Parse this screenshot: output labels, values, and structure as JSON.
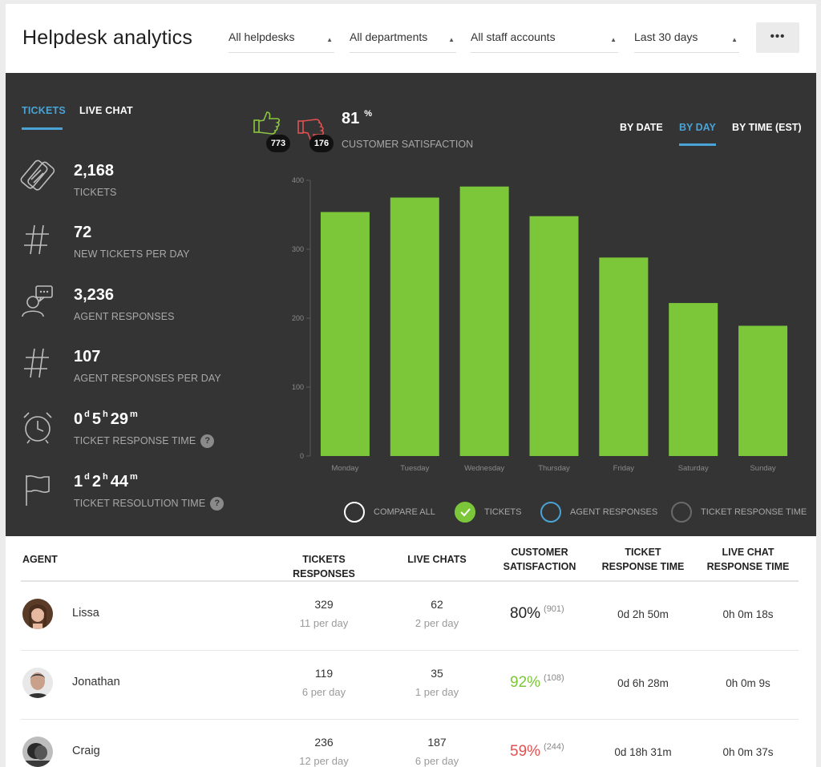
{
  "header": {
    "title": "Helpdesk analytics",
    "filters": [
      "All helpdesks",
      "All departments",
      "All staff accounts",
      "Last 30 days"
    ],
    "more_label": "•••"
  },
  "tabs": [
    "TICKETS",
    "LIVE CHAT"
  ],
  "active_tab": "TICKETS",
  "metrics": [
    {
      "icon": "ticket-icon",
      "value": "2,168",
      "label": "TICKETS"
    },
    {
      "icon": "hash-icon",
      "value": "72",
      "label": "NEW TICKETS PER DAY"
    },
    {
      "icon": "agent-icon",
      "value": "3,236",
      "label": "AGENT RESPONSES"
    },
    {
      "icon": "hash-icon",
      "value": "107",
      "label": "AGENT RESPONSES PER DAY"
    },
    {
      "icon": "alarm-clock-icon",
      "value_parts": [
        "0",
        "d",
        "5",
        "h",
        "29",
        "m"
      ],
      "label": "TICKET RESPONSE TIME"
    },
    {
      "icon": "flag-icon",
      "value_parts": [
        "1",
        "d",
        "2",
        "h",
        "44",
        "m"
      ],
      "label": "TICKET RESOLUTION TIME"
    }
  ],
  "help_label": "?",
  "satisfaction": {
    "thumbs_up_count": "773",
    "thumbs_down_count": "176",
    "value": "81",
    "unit": "%",
    "label": "CUSTOMER SATISFACTION"
  },
  "view_tabs": [
    "BY DATE",
    "BY DAY",
    "BY TIME (EST)"
  ],
  "active_view": "BY DAY",
  "chart_data": {
    "type": "bar",
    "categories": [
      "Monday",
      "Tuesday",
      "Wednesday",
      "Thursday",
      "Friday",
      "Saturday",
      "Sunday"
    ],
    "values": [
      354,
      375,
      391,
      348,
      288,
      222,
      189
    ],
    "ylim": [
      0,
      400
    ],
    "yticks": [
      0,
      100,
      200,
      300,
      400
    ],
    "bar_color": "#7cc63a",
    "grid": false
  },
  "legend": [
    {
      "label": "COMPARE ALL",
      "color": "#ffffff",
      "checked": false
    },
    {
      "label": "TICKETS",
      "color": "#7cc63a",
      "checked": true
    },
    {
      "label": "AGENT RESPONSES",
      "color": "#4aa3d6",
      "checked": false
    },
    {
      "label": "TICKET RESPONSE TIME",
      "color": "#6a6a6a",
      "checked": false
    }
  ],
  "table": {
    "headers": {
      "agent": "AGENT",
      "tickets": "TICKETS RESPONSES",
      "chats": "LIVE CHATS",
      "satisfaction": [
        "CUSTOMER",
        "SATISFACTION"
      ],
      "ticket_time": [
        "TICKET",
        "RESPONSE TIME"
      ],
      "chat_time": [
        "LIVE CHAT",
        "RESPONSE TIME"
      ]
    },
    "rows": [
      {
        "name": "Lissa",
        "tickets": "329",
        "tickets_per_day": "11 per day",
        "chats": "62",
        "chats_per_day": "2 per day",
        "satisfaction": "80%",
        "satisfaction_count": "(901)",
        "satisfaction_color": "#222222",
        "ticket_time": "0d 2h 50m",
        "chat_time": "0h 0m 18s"
      },
      {
        "name": "Jonathan",
        "tickets": "119",
        "tickets_per_day": "6 per day",
        "chats": "35",
        "chats_per_day": "1 per day",
        "satisfaction": "92%",
        "satisfaction_count": "(108)",
        "satisfaction_color": "#7cc63a",
        "ticket_time": "0d 6h 28m",
        "chat_time": "0h 0m 9s"
      },
      {
        "name": "Craig",
        "tickets": "236",
        "tickets_per_day": "12 per day",
        "chats": "187",
        "chats_per_day": "6 per day",
        "satisfaction": "59%",
        "satisfaction_count": "(244)",
        "satisfaction_color": "#e05252",
        "ticket_time": "0d 18h 31m",
        "chat_time": "0h 0m 37s"
      }
    ]
  }
}
